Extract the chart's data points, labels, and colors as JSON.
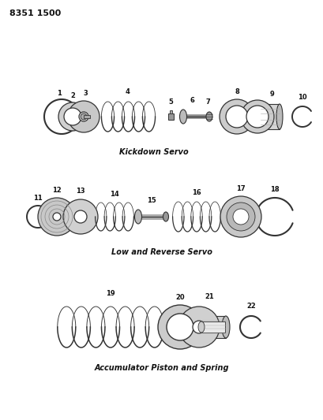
{
  "title_code": "8351 1500",
  "bg": "#ffffff",
  "lc": "#333333",
  "section1_label": "Kickdown Servo",
  "section2_label": "Low and Reverse Servo",
  "section3_label": "Accumulator Piston and Spring",
  "label_fs": 7,
  "num_fs": 6,
  "title_fs": 8,
  "fig_w": 4.1,
  "fig_h": 5.33,
  "dpi": 100,
  "s1y": 385,
  "s2y": 258,
  "s3y": 118
}
